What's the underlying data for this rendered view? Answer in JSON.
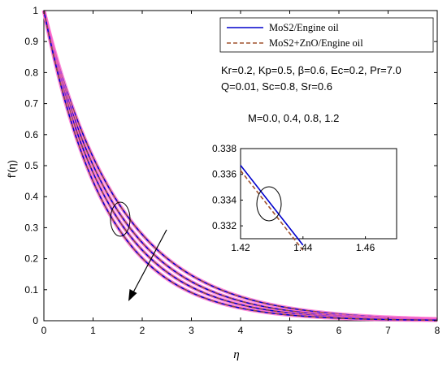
{
  "chart_data": {
    "type": "line",
    "title": "",
    "xlabel": "η",
    "ylabel": "f'(η)",
    "xlim": [
      0,
      8
    ],
    "ylim": [
      0,
      1
    ],
    "xticks": [
      "0",
      "1",
      "2",
      "3",
      "4",
      "5",
      "6",
      "7",
      "8"
    ],
    "yticks": [
      "0",
      "0.1",
      "0.2",
      "0.3",
      "0.4",
      "0.5",
      "0.6",
      "0.7",
      "0.8",
      "0.9",
      "1"
    ],
    "grid": false,
    "legend": {
      "placement": "top-right",
      "entries": [
        {
          "label": "MoS2/Engine oil",
          "color": "#0000cc",
          "style": "solid"
        },
        {
          "label": "MoS2+ZnO/Engine oil",
          "color": "#a0522d",
          "style": "dashed"
        }
      ]
    },
    "annotations": {
      "params_line1": "Kr=0.2, Kp=0.5, β=0.6, Ec=0.2, Pr=7.0",
      "params_line2": "Q=0.01, Sc=0.8, Sr=0.6",
      "m_values": "M=0.0, 0.4, 0.8, 1.2"
    },
    "curve_model": "f'(η) = exp(-k·η)",
    "curves": [
      {
        "M": 0.0,
        "decay_rate": 0.64,
        "x_range": [
          0,
          8
        ]
      },
      {
        "M": 0.4,
        "decay_rate": 0.69,
        "x_range": [
          0,
          8
        ]
      },
      {
        "M": 0.8,
        "decay_rate": 0.74,
        "x_range": [
          0,
          8
        ]
      },
      {
        "M": 1.2,
        "decay_rate": 0.8,
        "x_range": [
          0,
          8
        ]
      }
    ],
    "halo_color": "#ff66cc",
    "inset": {
      "xlim": [
        1.42,
        1.47
      ],
      "ylim": [
        0.331,
        0.338
      ],
      "xticks": [
        "1.42",
        "1.44",
        "1.46"
      ],
      "yticks": [
        "0.332",
        "0.334",
        "0.336",
        "0.338"
      ],
      "series": [
        {
          "name": "MoS2/Engine oil",
          "color": "#0000cc",
          "style": "solid",
          "points": [
            [
              1.42,
              0.3367
            ],
            [
              1.44,
              0.3305
            ]
          ]
        },
        {
          "name": "MoS2+ZnO/Engine oil",
          "color": "#a0522d",
          "style": "dashed",
          "points": [
            [
              1.42,
              0.3363
            ],
            [
              1.44,
              0.3301
            ]
          ]
        }
      ]
    }
  }
}
